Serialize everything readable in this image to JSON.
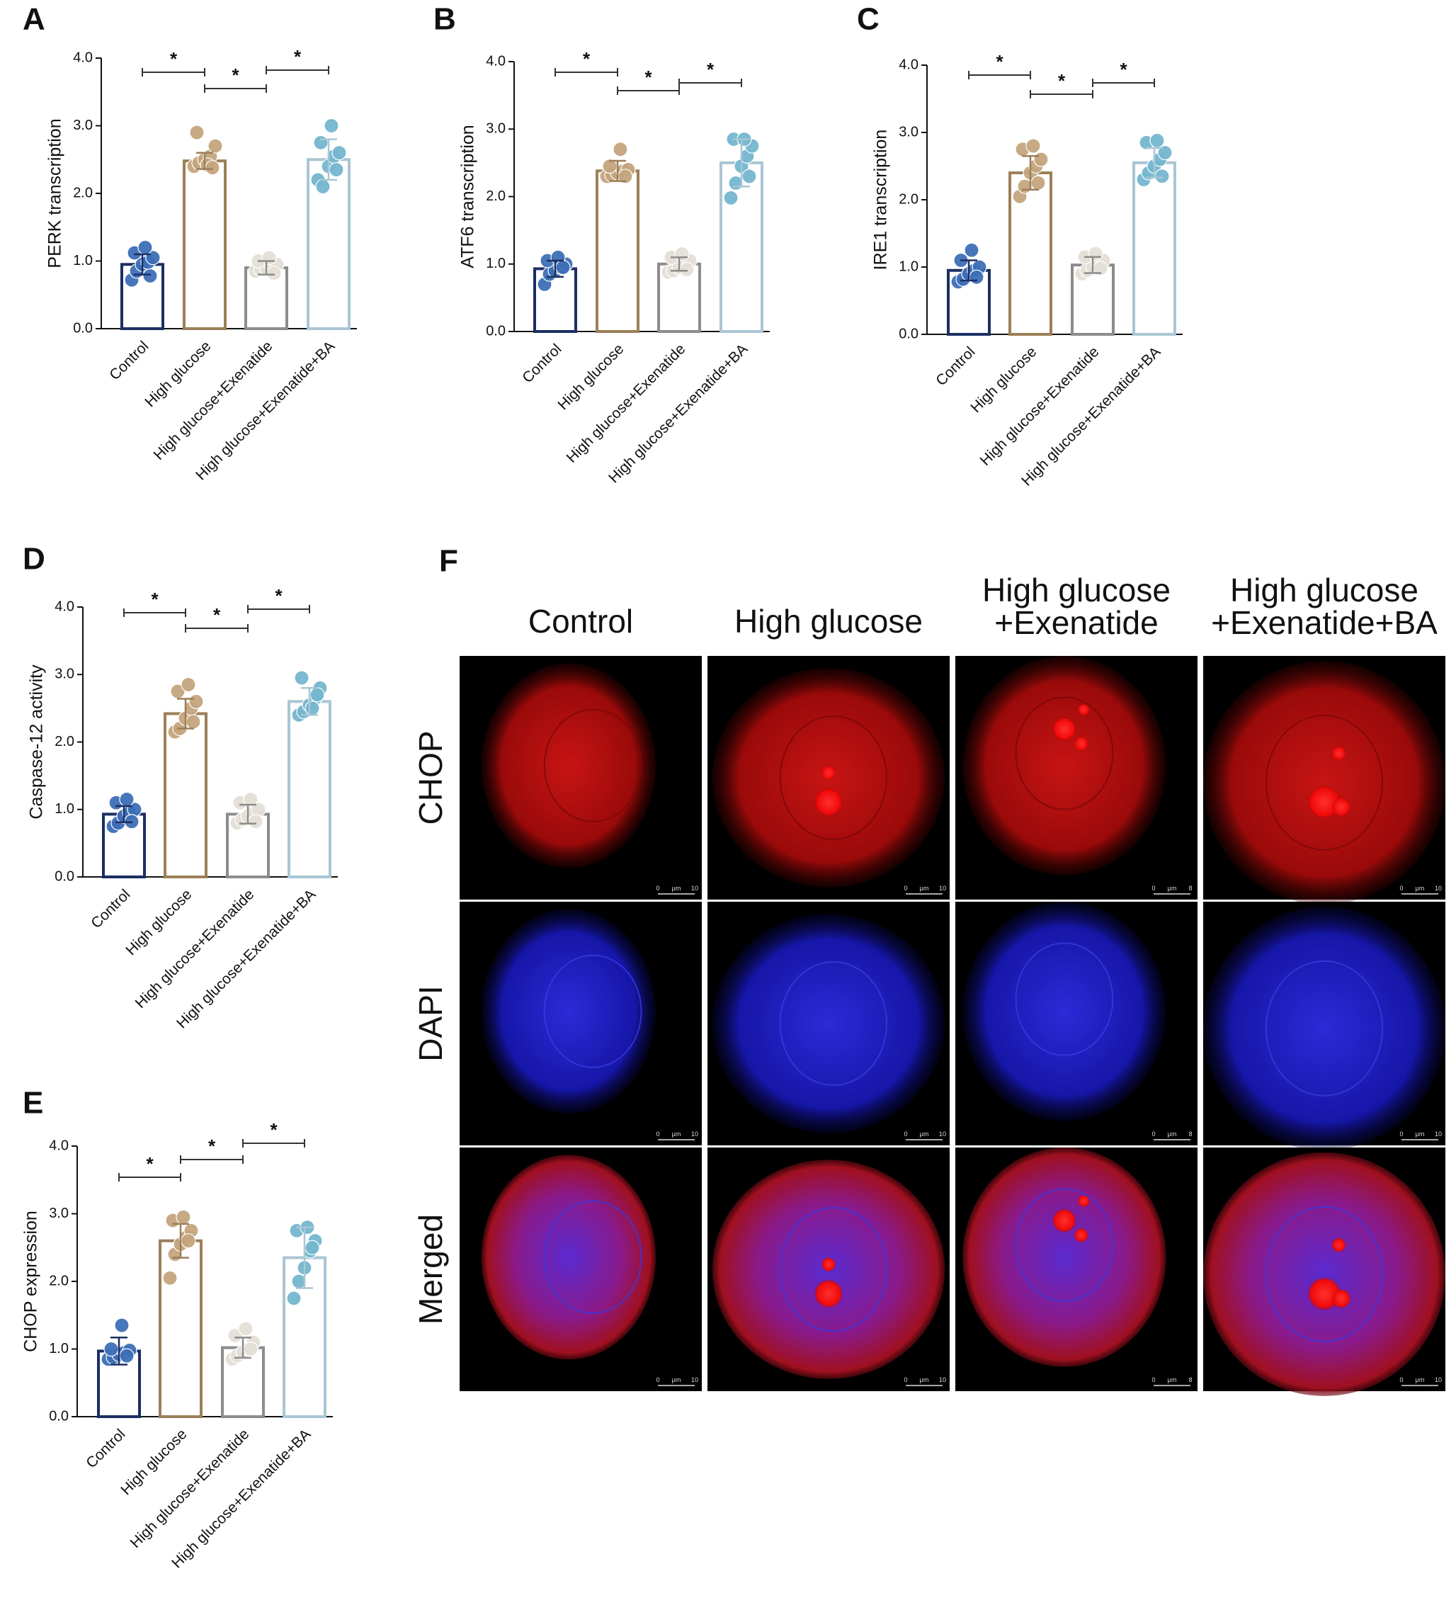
{
  "chart_data": [
    {
      "type": "bar",
      "panel_label": "A",
      "y_label": "PERK transcription",
      "categories": [
        "Control",
        "High glucose",
        "High glucose+Exenatide",
        "High glucose+Exenatide+BA"
      ],
      "values": [
        0.95,
        2.48,
        0.9,
        2.5
      ],
      "errors": [
        0.15,
        0.12,
        0.1,
        0.3
      ],
      "points": [
        [
          0.72,
          0.85,
          0.95,
          0.98,
          1.05,
          1.12,
          1.2,
          0.78
        ],
        [
          2.4,
          2.45,
          2.5,
          2.55,
          2.7,
          2.9,
          2.42,
          2.38
        ],
        [
          0.85,
          0.88,
          0.9,
          0.92,
          0.95,
          1.0,
          1.05,
          0.82
        ],
        [
          2.2,
          2.1,
          2.4,
          2.55,
          2.6,
          2.75,
          3.0,
          2.35
        ]
      ],
      "colors": [
        "#1c2f63",
        "#9c7f58",
        "#8c8c8c",
        "#a9c6d4"
      ],
      "point_colors": [
        "#3d6fb6",
        "#c4a47d",
        "#e4dfd6",
        "#74b6cf"
      ],
      "ylim": [
        0,
        4
      ],
      "yticks": [
        {
          "value": 0,
          "label": "0.0"
        },
        {
          "value": 1,
          "label": "1.0"
        },
        {
          "value": 2,
          "label": "2.0"
        },
        {
          "value": 3,
          "label": "3.0"
        },
        {
          "value": 4,
          "label": "4.0"
        }
      ],
      "annotations": [
        {
          "label": "*",
          "between": [
            0,
            1
          ]
        },
        {
          "label": "*",
          "between": [
            1,
            2
          ]
        },
        {
          "label": "*",
          "between": [
            2,
            3
          ]
        }
      ]
    },
    {
      "type": "bar",
      "panel_label": "B",
      "y_label": "ATF6 transcription",
      "categories": [
        "Control",
        "High glucose",
        "High glucose+Exenatide",
        "High glucose+Exenatide+BA"
      ],
      "values": [
        0.93,
        2.38,
        1.0,
        2.5
      ],
      "errors": [
        0.12,
        0.15,
        0.1,
        0.35
      ],
      "points": [
        [
          0.7,
          0.85,
          0.9,
          0.95,
          1.0,
          1.05,
          1.1,
          0.95
        ],
        [
          2.3,
          2.32,
          2.35,
          2.38,
          2.4,
          2.45,
          2.7,
          2.3
        ],
        [
          0.88,
          0.9,
          0.95,
          1.0,
          1.05,
          1.1,
          1.15,
          0.92
        ],
        [
          1.98,
          2.2,
          2.45,
          2.6,
          2.75,
          2.85,
          2.85,
          2.3
        ]
      ],
      "colors": [
        "#1c2f63",
        "#9c7f58",
        "#8c8c8c",
        "#a9c6d4"
      ],
      "point_colors": [
        "#3d6fb6",
        "#c4a47d",
        "#e4dfd6",
        "#74b6cf"
      ],
      "ylim": [
        0,
        4
      ],
      "yticks": [
        {
          "value": 0,
          "label": "0.0"
        },
        {
          "value": 1,
          "label": "1.0"
        },
        {
          "value": 2,
          "label": "2.0"
        },
        {
          "value": 3,
          "label": "3.0"
        },
        {
          "value": 4,
          "label": "4.0"
        }
      ],
      "annotations": [
        {
          "label": "*",
          "between": [
            0,
            1
          ]
        },
        {
          "label": "*",
          "between": [
            1,
            2
          ]
        },
        {
          "label": "*",
          "between": [
            2,
            3
          ]
        }
      ]
    },
    {
      "type": "bar",
      "panel_label": "C",
      "y_label": "IRE1 transcription",
      "categories": [
        "Control",
        "High glucose",
        "High glucose+Exenatide",
        "High glucose+Exenatide+BA"
      ],
      "values": [
        0.95,
        2.4,
        1.03,
        2.55
      ],
      "errors": [
        0.15,
        0.25,
        0.12,
        0.22
      ],
      "points": [
        [
          0.78,
          0.82,
          0.9,
          0.95,
          1.0,
          1.1,
          1.25,
          0.85
        ],
        [
          2.05,
          2.2,
          2.4,
          2.5,
          2.6,
          2.75,
          2.8,
          2.25
        ],
        [
          0.9,
          0.95,
          1.0,
          1.05,
          1.1,
          1.15,
          1.2,
          0.98
        ],
        [
          2.3,
          2.4,
          2.5,
          2.6,
          2.7,
          2.85,
          2.88,
          2.35
        ]
      ],
      "colors": [
        "#1c2f63",
        "#9c7f58",
        "#8c8c8c",
        "#a9c6d4"
      ],
      "point_colors": [
        "#3d6fb6",
        "#c4a47d",
        "#e4dfd6",
        "#74b6cf"
      ],
      "ylim": [
        0,
        4
      ],
      "yticks": [
        {
          "value": 0,
          "label": "0.0"
        },
        {
          "value": 1,
          "label": "1.0"
        },
        {
          "value": 2,
          "label": "2.0"
        },
        {
          "value": 3,
          "label": "3.0"
        },
        {
          "value": 4,
          "label": "4.0"
        }
      ],
      "annotations": [
        {
          "label": "*",
          "between": [
            0,
            1
          ]
        },
        {
          "label": "*",
          "between": [
            1,
            2
          ]
        },
        {
          "label": "*",
          "between": [
            2,
            3
          ]
        }
      ]
    },
    {
      "type": "bar",
      "panel_label": "D",
      "y_label": "Caspase-12 activity",
      "categories": [
        "Control",
        "High glucose",
        "High glucose+Exenatide",
        "High glucose+Exenatide+BA"
      ],
      "values": [
        0.93,
        2.42,
        0.93,
        2.6
      ],
      "errors": [
        0.12,
        0.22,
        0.14,
        0.2
      ],
      "points": [
        [
          0.75,
          0.8,
          0.9,
          0.95,
          1.0,
          1.1,
          1.15,
          0.82
        ],
        [
          2.15,
          2.2,
          2.35,
          2.5,
          2.6,
          2.75,
          2.85,
          2.3
        ],
        [
          0.8,
          0.85,
          0.9,
          0.95,
          1.0,
          1.1,
          1.15,
          0.82
        ],
        [
          2.4,
          2.45,
          2.55,
          2.65,
          2.8,
          2.95,
          2.5,
          2.7
        ]
      ],
      "colors": [
        "#1c2f63",
        "#9c7f58",
        "#8c8c8c",
        "#a9c6d4"
      ],
      "point_colors": [
        "#3d6fb6",
        "#c4a47d",
        "#e4dfd6",
        "#74b6cf"
      ],
      "ylim": [
        0,
        4
      ],
      "yticks": [
        {
          "value": 0,
          "label": "0.0"
        },
        {
          "value": 1,
          "label": "1.0"
        },
        {
          "value": 2,
          "label": "2.0"
        },
        {
          "value": 3,
          "label": "3.0"
        },
        {
          "value": 4,
          "label": "4.0"
        }
      ],
      "annotations": [
        {
          "label": "*",
          "between": [
            0,
            1
          ]
        },
        {
          "label": "*",
          "between": [
            1,
            2
          ]
        },
        {
          "label": "*",
          "between": [
            2,
            3
          ]
        }
      ]
    },
    {
      "type": "bar",
      "panel_label": "E",
      "y_label": "CHOP expression",
      "categories": [
        "Control",
        "High glucose",
        "High glucose+Exenatide",
        "High glucose+Exenatide+BA"
      ],
      "values": [
        0.97,
        2.6,
        1.02,
        2.35
      ],
      "errors": [
        0.2,
        0.25,
        0.15,
        0.45
      ],
      "points": [
        [
          0.85,
          0.88,
          0.92,
          0.95,
          0.98,
          1.0,
          1.35,
          0.9
        ],
        [
          2.05,
          2.4,
          2.55,
          2.65,
          2.75,
          2.9,
          2.95,
          2.6
        ],
        [
          0.85,
          0.9,
          0.95,
          1.0,
          1.1,
          1.2,
          1.3,
          1.0
        ],
        [
          1.75,
          2.0,
          2.2,
          2.45,
          2.6,
          2.75,
          2.8,
          2.5
        ]
      ],
      "colors": [
        "#1c2f63",
        "#9c7f58",
        "#8c8c8c",
        "#a9c6d4"
      ],
      "point_colors": [
        "#3d6fb6",
        "#c4a47d",
        "#e4dfd6",
        "#74b6cf"
      ],
      "ylim": [
        0,
        4
      ],
      "yticks": [
        {
          "value": 0,
          "label": "0.0"
        },
        {
          "value": 1,
          "label": "1.0"
        },
        {
          "value": 2,
          "label": "2.0"
        },
        {
          "value": 3,
          "label": "3.0"
        },
        {
          "value": 4,
          "label": "4.0"
        }
      ],
      "annotations": [
        {
          "label": "*",
          "between": [
            0,
            1
          ]
        },
        {
          "label": "*",
          "between": [
            1,
            2
          ]
        },
        {
          "label": "*",
          "between": [
            2,
            3
          ]
        }
      ]
    }
  ],
  "microscopy": {
    "panel_label": "F",
    "columns": [
      [
        "Control"
      ],
      [
        "High glucose"
      ],
      [
        "High glucose",
        "+Exenatide"
      ],
      [
        "High glucose",
        "+Exenatide+BA"
      ]
    ],
    "rows": [
      "CHOP",
      "DAPI",
      "Merged"
    ],
    "scale_bars": [
      {
        "start": "0",
        "unit": "μm",
        "end": "10"
      },
      {
        "start": "0",
        "unit": "μm",
        "end": "10"
      },
      {
        "start": "0",
        "unit": "μm",
        "end": "8"
      },
      {
        "start": "0",
        "unit": "μm",
        "end": "10"
      }
    ]
  }
}
